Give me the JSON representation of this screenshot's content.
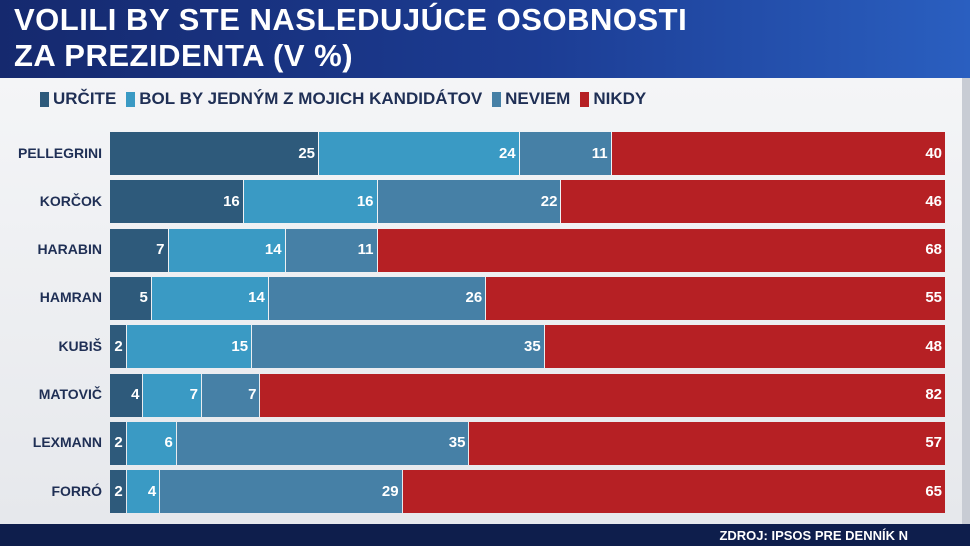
{
  "title": {
    "line1": "VOLILI BY STE NASLEDUJÚCE OSOBNOSTI",
    "line2": "ZA PREZIDENTA (V %)"
  },
  "source": "ZDROJ: IPSOS PRE DENNÍK N",
  "chart_data": {
    "type": "bar",
    "orientation": "horizontal",
    "stacked": true,
    "xlim": [
      0,
      100
    ],
    "categories": [
      "PELLEGRINI",
      "KORČOK",
      "HARABIN",
      "HAMRAN",
      "KUBIŠ",
      "MATOVIČ",
      "LEXMANN",
      "FORRÓ"
    ],
    "series": [
      {
        "name": "URČITE",
        "color": "#2e5a7b",
        "values": [
          25,
          16,
          7,
          5,
          2,
          4,
          2,
          2
        ]
      },
      {
        "name": "BOL BY JEDNÝM Z MOJICH KANDIDÁTOV",
        "color": "#3a9ac4",
        "values": [
          24,
          16,
          14,
          14,
          15,
          7,
          6,
          4
        ]
      },
      {
        "name": "NEVIEM",
        "color": "#4680a6",
        "values": [
          11,
          22,
          11,
          26,
          35,
          7,
          35,
          29
        ]
      },
      {
        "name": "NIKDY",
        "color": "#b62024",
        "values": [
          40,
          46,
          68,
          55,
          48,
          82,
          57,
          65
        ]
      }
    ],
    "legend_position": "top",
    "data_labels": true,
    "grid": false
  }
}
